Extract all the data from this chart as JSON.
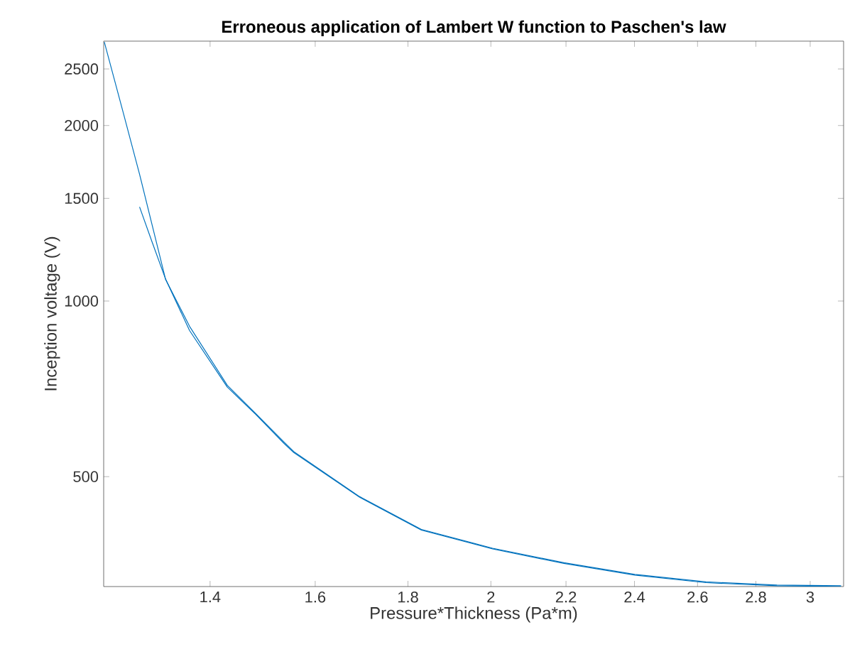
{
  "chart_data": {
    "type": "line",
    "title": "Erroneous application of Lambert W function to Paschen's law",
    "xlabel": "Pressure*Thickness (Pa*m)",
    "ylabel": "Inception voltage (V)",
    "log": "xy",
    "xlim": [
      1.223,
      3.13
    ],
    "ylim": [
      324,
      2790
    ],
    "xticks": [
      1.4,
      1.6,
      1.8,
      2,
      2.2,
      2.4,
      2.6,
      2.8,
      3
    ],
    "yticks": [
      500,
      1000,
      1500,
      2000,
      2500
    ],
    "series": [
      {
        "color": "#0072bd",
        "x": [
          1.224,
          1.254,
          1.28,
          1.323,
          1.364,
          1.431,
          1.484,
          1.538,
          1.557,
          1.693,
          1.831,
          2.004,
          2.194,
          2.401,
          2.628,
          2.876,
          3.12
        ],
        "values": [
          2780,
          2100,
          1650,
          1090,
          905,
          717,
          641,
          573,
          552,
          462,
          406,
          377,
          356,
          340,
          330,
          326,
          325
        ]
      },
      {
        "color": "#0072bd",
        "x": [
          1.28,
          1.3,
          1.323,
          1.364,
          1.431,
          1.484,
          1.538,
          1.557,
          1.693,
          1.831,
          2.004,
          2.194,
          2.401,
          2.628,
          2.876,
          3.12
        ],
        "values": [
          1450,
          1267,
          1091,
          890,
          712,
          639,
          570,
          550,
          461,
          405,
          376,
          355,
          339,
          329,
          325,
          324
        ]
      }
    ]
  }
}
